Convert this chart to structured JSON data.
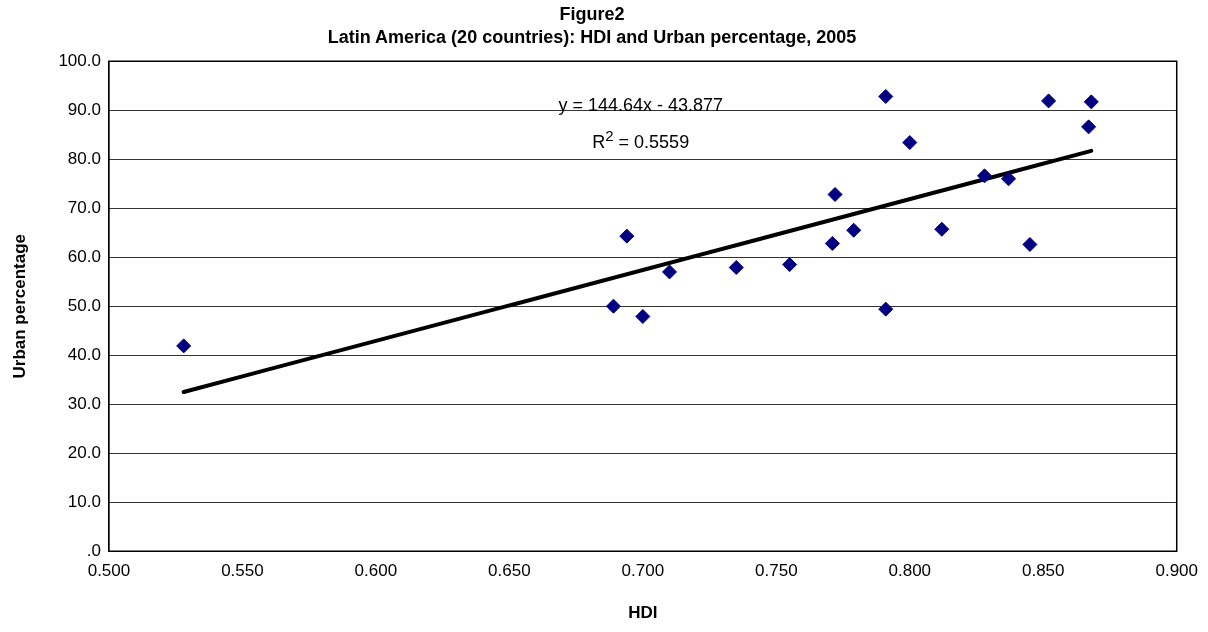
{
  "chart_data": {
    "type": "scatter",
    "title": "Figure2",
    "subtitle": "Latin America (20 countries): HDI and Urban percentage, 2005",
    "xlabel": "HDI",
    "ylabel": "Urban percentage",
    "series": [
      {
        "color": "#000080",
        "marker": "diamond",
        "x": [
          0.528,
          0.689,
          0.694,
          0.7,
          0.71,
          0.735,
          0.755,
          0.771,
          0.772,
          0.779,
          0.791,
          0.791,
          0.8,
          0.812,
          0.828,
          0.837,
          0.845,
          0.852,
          0.867,
          0.868
        ],
        "values": [
          41.9,
          50.0,
          64.3,
          47.9,
          57.0,
          57.9,
          58.5,
          62.8,
          72.8,
          65.5,
          92.8,
          49.4,
          83.4,
          65.7,
          76.6,
          76.0,
          62.6,
          91.9,
          86.6,
          91.7
        ]
      },
      {
        "type": "line",
        "color": "#000000",
        "marker": "none",
        "line_style": "solid",
        "x": [
          0.528,
          0.868
        ],
        "values": [
          32.5,
          81.7
        ]
      }
    ],
    "xlim": [
      0.5,
      0.9
    ],
    "xticks": [
      {
        "value": 0.5,
        "label": "0.500"
      },
      {
        "value": 0.55,
        "label": "0.550"
      },
      {
        "value": 0.6,
        "label": "0.600"
      },
      {
        "value": 0.65,
        "label": "0.650"
      },
      {
        "value": 0.7,
        "label": "0.700"
      },
      {
        "value": 0.75,
        "label": "0.750"
      },
      {
        "value": 0.8,
        "label": "0.800"
      },
      {
        "value": 0.85,
        "label": "0.850"
      },
      {
        "value": 0.9,
        "label": "0.900"
      }
    ],
    "ylim": [
      0,
      100
    ],
    "yticks": [
      {
        "value": 0,
        "label": ".0"
      },
      {
        "value": 10,
        "label": "10.0"
      },
      {
        "value": 20,
        "label": "20.0"
      },
      {
        "value": 30,
        "label": "30.0"
      },
      {
        "value": 40,
        "label": "40.0"
      },
      {
        "value": 50,
        "label": "50.0"
      },
      {
        "value": 60,
        "label": "60.0"
      },
      {
        "value": 70,
        "label": "70.0"
      },
      {
        "value": 80,
        "label": "80.0"
      },
      {
        "value": 90,
        "label": "90.0"
      },
      {
        "value": 100,
        "label": "100.0"
      }
    ],
    "grid": "y",
    "legend": false,
    "annotations": [
      "y = 144.64x - 43.877",
      "R$^{2}$ = 0.5559"
    ]
  }
}
